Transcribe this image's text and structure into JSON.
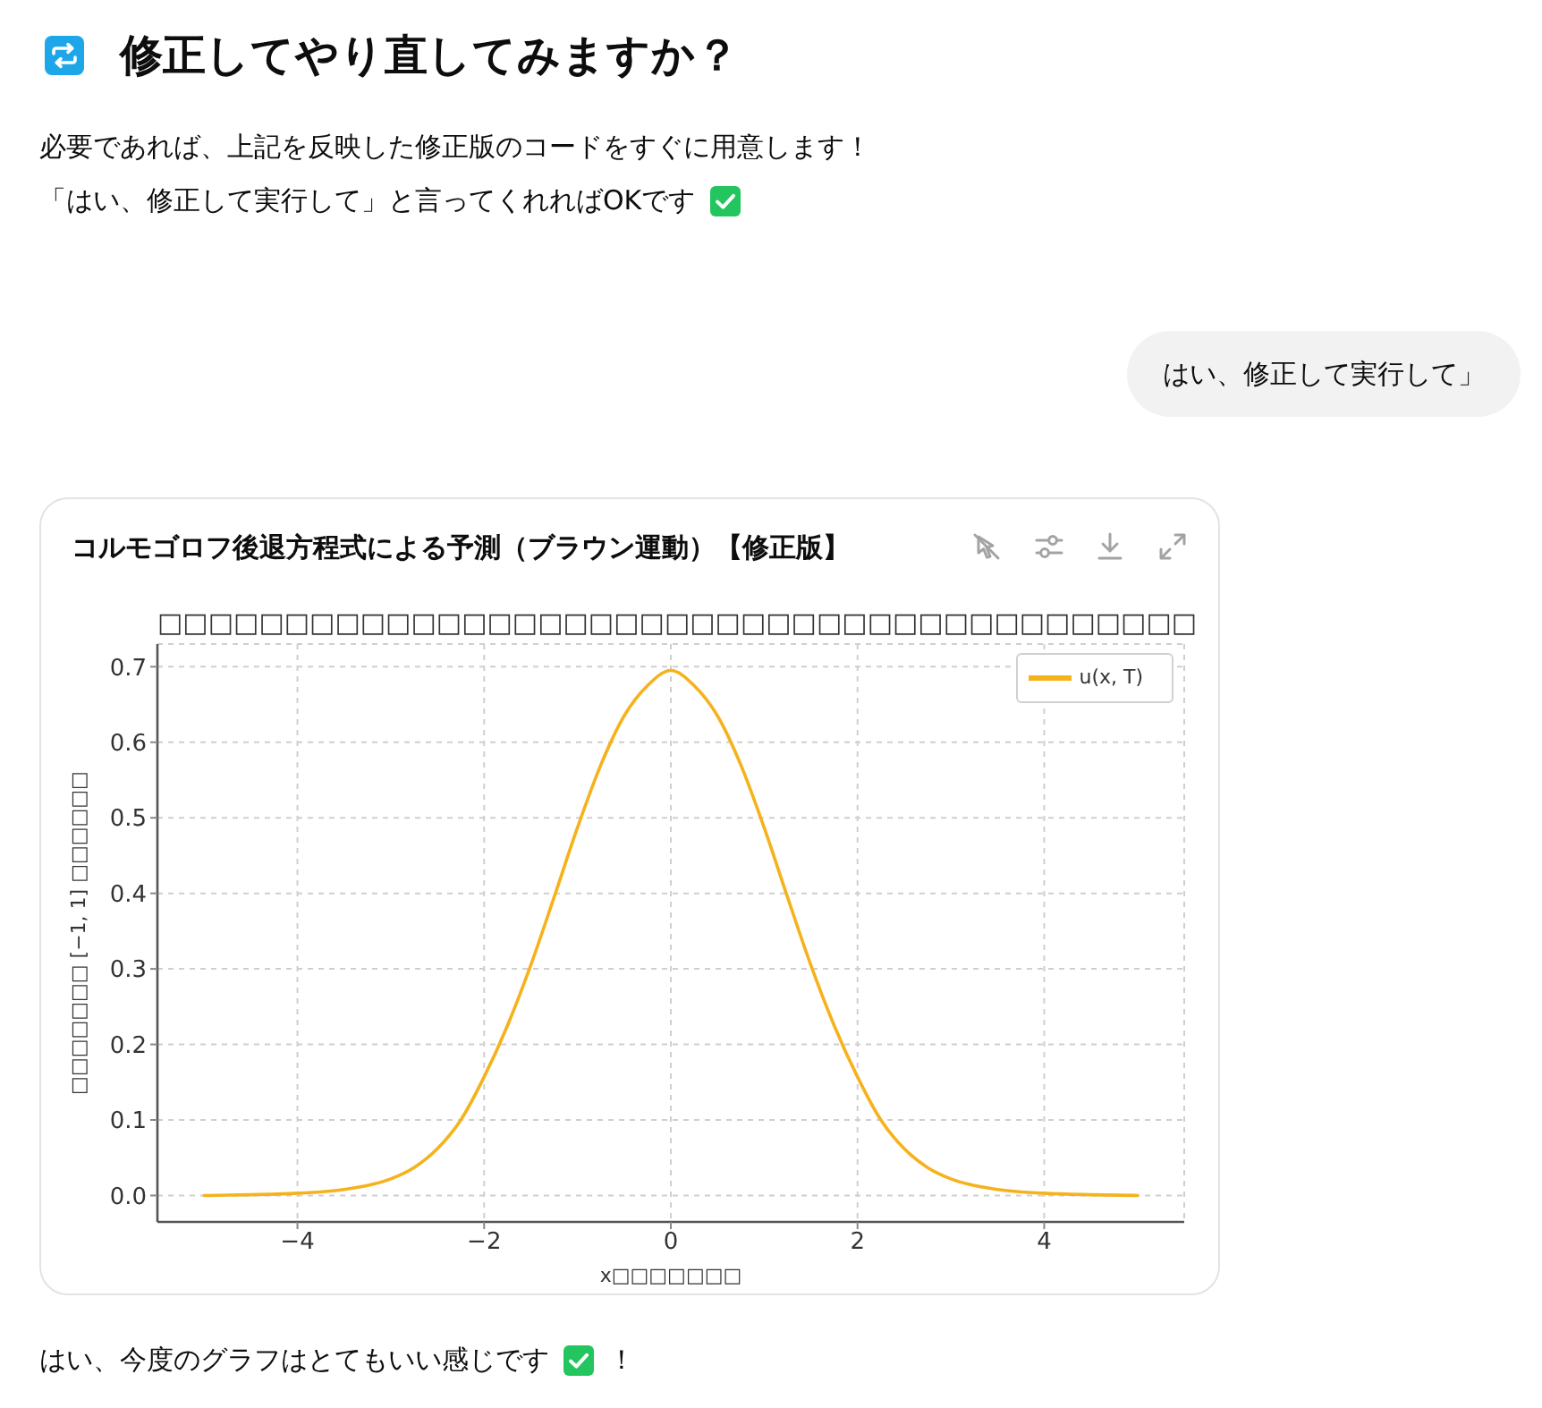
{
  "chart_data": {
    "type": "line",
    "title": "コルモゴロフ後退方程式による予測（ブラウン運動）【修正版】",
    "subtitle": "□□□□□□□□□□□□□□□□□□□□□□□□□□□□□□□□□□□□□□□□□",
    "xlabel": "x□□□□□□□",
    "ylabel": "□□□□□□□ [−1, 1] □□□□□□",
    "annotations": [
      "修正してやり直してみますか？",
      "必要であれば、上記を反映した修正版のコードをすぐに用意します！",
      "「はい、修正して実行して」と言ってくれればOKです",
      "はい、修正して実行して」",
      "はい、今度のグラフはとてもいい感じです",
      "！"
    ],
    "x": [
      -5,
      -4.5,
      -4,
      -3.5,
      -3,
      -2.75,
      -2.5,
      -2.25,
      -2,
      -1.75,
      -1.5,
      -1.25,
      -1,
      -0.75,
      -0.5,
      -0.25,
      0,
      0.25,
      0.5,
      0.75,
      1,
      1.25,
      1.5,
      1.75,
      2,
      2.25,
      2.5,
      2.75,
      3,
      3.5,
      4,
      4.5,
      5
    ],
    "series": [
      {
        "name": "u(x, T)",
        "color": "#f5b21c",
        "values": [
          0,
          0.001,
          0.003,
          0.008,
          0.022,
          0.037,
          0.062,
          0.1,
          0.157,
          0.225,
          0.305,
          0.395,
          0.487,
          0.57,
          0.635,
          0.675,
          0.695,
          0.675,
          0.635,
          0.57,
          0.487,
          0.395,
          0.305,
          0.225,
          0.157,
          0.1,
          0.062,
          0.037,
          0.022,
          0.008,
          0.003,
          0.001,
          0
        ]
      }
    ],
    "xlim": [
      -5.5,
      5.5
    ],
    "xticks": [
      {
        "value": -4,
        "label": "−4"
      },
      {
        "value": -2,
        "label": "−2"
      },
      0,
      2,
      4
    ],
    "ylim": [
      -0.035,
      0.73
    ],
    "yticks": [
      {
        "value": 0,
        "label": "0.0"
      },
      0.1,
      0.2,
      0.3,
      0.4,
      0.5,
      0.6,
      0.7
    ],
    "grid": true,
    "legend": "top right"
  }
}
